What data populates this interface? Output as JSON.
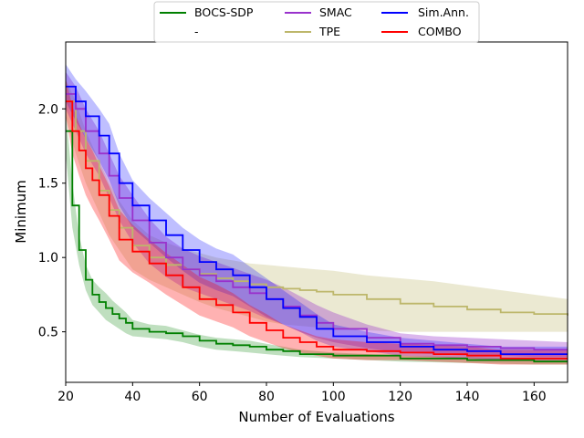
{
  "chart_data": {
    "type": "line",
    "title": "",
    "xlabel": "Number of Evaluations",
    "ylabel": "Minimum",
    "xlim": [
      20,
      170
    ],
    "ylim": [
      0.16,
      2.45
    ],
    "xticks": [
      20,
      40,
      60,
      80,
      100,
      120,
      140,
      160
    ],
    "yticks": [
      0.5,
      1.0,
      1.5,
      2.0
    ],
    "xtick_labels": [
      "20",
      "40",
      "60",
      "80",
      "100",
      "120",
      "140",
      "160"
    ],
    "ytick_labels": [
      "0.5",
      "1.0",
      "1.5",
      "2.0"
    ],
    "legend": {
      "placement": "top-center, above plot",
      "entries": [
        "BOCS-SDP",
        "-",
        "SMAC",
        "TPE",
        "Sim.Ann.",
        "COMBO"
      ]
    },
    "series": [
      {
        "name": "BOCS-SDP",
        "color": "#008000",
        "band_opacity": 0.25,
        "x": [
          20,
          22,
          24,
          26,
          28,
          30,
          32,
          34,
          36,
          38,
          40,
          45,
          50,
          55,
          60,
          65,
          70,
          75,
          80,
          85,
          90,
          100,
          120,
          140,
          160,
          170
        ],
        "y": [
          1.85,
          1.35,
          1.05,
          0.85,
          0.75,
          0.7,
          0.66,
          0.62,
          0.59,
          0.56,
          0.52,
          0.5,
          0.49,
          0.47,
          0.44,
          0.42,
          0.41,
          0.4,
          0.38,
          0.37,
          0.35,
          0.34,
          0.32,
          0.31,
          0.3,
          0.3
        ],
        "lower": [
          1.7,
          1.2,
          0.95,
          0.78,
          0.68,
          0.63,
          0.58,
          0.55,
          0.52,
          0.49,
          0.47,
          0.46,
          0.45,
          0.43,
          0.4,
          0.38,
          0.37,
          0.36,
          0.35,
          0.34,
          0.33,
          0.32,
          0.3,
          0.29,
          0.28,
          0.28
        ],
        "upper": [
          2.0,
          1.5,
          1.15,
          0.95,
          0.85,
          0.8,
          0.76,
          0.71,
          0.67,
          0.63,
          0.58,
          0.55,
          0.54,
          0.51,
          0.48,
          0.46,
          0.45,
          0.44,
          0.42,
          0.4,
          0.38,
          0.36,
          0.34,
          0.33,
          0.32,
          0.32
        ]
      },
      {
        "name": "-",
        "color": "",
        "band_opacity": 0,
        "x": [],
        "y": [],
        "lower": [],
        "upper": []
      },
      {
        "name": "TPE",
        "color": "#bdb76b",
        "band_opacity": 0.3,
        "x": [
          20,
          23,
          26,
          30,
          33,
          36,
          40,
          45,
          50,
          55,
          60,
          65,
          70,
          75,
          80,
          85,
          90,
          95,
          100,
          110,
          120,
          130,
          140,
          150,
          160,
          170
        ],
        "y": [
          2.05,
          1.85,
          1.65,
          1.45,
          1.32,
          1.2,
          1.08,
          1.0,
          0.95,
          0.92,
          0.89,
          0.86,
          0.84,
          0.82,
          0.8,
          0.79,
          0.78,
          0.77,
          0.75,
          0.72,
          0.69,
          0.67,
          0.65,
          0.63,
          0.62,
          0.61
        ],
        "lower": [
          1.95,
          1.7,
          1.5,
          1.3,
          1.15,
          1.05,
          0.92,
          0.85,
          0.8,
          0.75,
          0.7,
          0.66,
          0.63,
          0.6,
          0.57,
          0.55,
          0.54,
          0.53,
          0.52,
          0.51,
          0.5,
          0.5,
          0.5,
          0.5,
          0.5,
          0.5
        ],
        "upper": [
          2.2,
          2.05,
          1.85,
          1.65,
          1.5,
          1.38,
          1.25,
          1.15,
          1.1,
          1.06,
          1.03,
          1.0,
          0.98,
          0.96,
          0.95,
          0.94,
          0.93,
          0.92,
          0.91,
          0.88,
          0.86,
          0.84,
          0.81,
          0.78,
          0.75,
          0.72
        ]
      },
      {
        "name": "SMAC",
        "color": "#9932cc",
        "band_opacity": 0.35,
        "x": [
          20,
          23,
          26,
          30,
          33,
          36,
          40,
          45,
          50,
          55,
          60,
          65,
          70,
          75,
          80,
          85,
          90,
          95,
          100,
          110,
          120,
          130,
          140,
          150,
          160,
          170
        ],
        "y": [
          2.1,
          2.0,
          1.85,
          1.7,
          1.55,
          1.4,
          1.25,
          1.1,
          1.0,
          0.92,
          0.88,
          0.84,
          0.8,
          0.76,
          0.72,
          0.67,
          0.61,
          0.56,
          0.52,
          0.46,
          0.42,
          0.41,
          0.4,
          0.39,
          0.38,
          0.38
        ],
        "lower": [
          2.0,
          1.85,
          1.7,
          1.55,
          1.4,
          1.25,
          1.1,
          0.96,
          0.87,
          0.8,
          0.76,
          0.72,
          0.68,
          0.64,
          0.59,
          0.55,
          0.5,
          0.46,
          0.43,
          0.39,
          0.36,
          0.35,
          0.34,
          0.34,
          0.33,
          0.33
        ],
        "upper": [
          2.25,
          2.15,
          2.0,
          1.85,
          1.7,
          1.55,
          1.42,
          1.26,
          1.14,
          1.06,
          1.01,
          0.97,
          0.93,
          0.89,
          0.85,
          0.8,
          0.74,
          0.68,
          0.63,
          0.55,
          0.49,
          0.47,
          0.46,
          0.45,
          0.44,
          0.43
        ]
      },
      {
        "name": "Sim.Ann.",
        "color": "#0000ff",
        "band_opacity": 0.25,
        "x": [
          20,
          23,
          26,
          30,
          33,
          36,
          40,
          45,
          50,
          55,
          60,
          65,
          70,
          75,
          80,
          85,
          90,
          95,
          100,
          110,
          120,
          130,
          140,
          150,
          160,
          170
        ],
        "y": [
          2.15,
          2.05,
          1.95,
          1.82,
          1.7,
          1.5,
          1.35,
          1.25,
          1.15,
          1.05,
          0.97,
          0.92,
          0.88,
          0.8,
          0.72,
          0.66,
          0.6,
          0.52,
          0.47,
          0.43,
          0.4,
          0.38,
          0.37,
          0.35,
          0.35,
          0.35
        ],
        "lower": [
          2.05,
          1.92,
          1.8,
          1.65,
          1.52,
          1.35,
          1.2,
          1.1,
          1.0,
          0.91,
          0.83,
          0.78,
          0.74,
          0.67,
          0.6,
          0.55,
          0.5,
          0.44,
          0.4,
          0.37,
          0.34,
          0.33,
          0.32,
          0.31,
          0.31,
          0.31
        ],
        "upper": [
          2.3,
          2.2,
          2.12,
          2.0,
          1.9,
          1.7,
          1.52,
          1.4,
          1.3,
          1.2,
          1.12,
          1.06,
          1.02,
          0.94,
          0.86,
          0.78,
          0.7,
          0.62,
          0.55,
          0.5,
          0.46,
          0.44,
          0.42,
          0.4,
          0.4,
          0.4
        ]
      },
      {
        "name": "COMBO",
        "color": "#ff0000",
        "band_opacity": 0.3,
        "x": [
          20,
          22,
          24,
          26,
          28,
          30,
          33,
          36,
          40,
          45,
          50,
          55,
          60,
          65,
          70,
          75,
          80,
          85,
          90,
          95,
          100,
          110,
          120,
          130,
          140,
          150,
          160,
          170
        ],
        "y": [
          2.05,
          1.85,
          1.72,
          1.6,
          1.52,
          1.42,
          1.28,
          1.12,
          1.04,
          0.96,
          0.88,
          0.8,
          0.72,
          0.68,
          0.63,
          0.56,
          0.51,
          0.46,
          0.43,
          0.4,
          0.38,
          0.37,
          0.36,
          0.35,
          0.34,
          0.32,
          0.32,
          0.32
        ],
        "lower": [
          1.95,
          1.7,
          1.55,
          1.42,
          1.33,
          1.25,
          1.12,
          0.98,
          0.9,
          0.83,
          0.75,
          0.68,
          0.61,
          0.57,
          0.53,
          0.47,
          0.43,
          0.39,
          0.36,
          0.34,
          0.32,
          0.31,
          0.31,
          0.3,
          0.29,
          0.28,
          0.28,
          0.28
        ],
        "upper": [
          2.2,
          2.02,
          1.9,
          1.8,
          1.72,
          1.62,
          1.48,
          1.32,
          1.22,
          1.12,
          1.03,
          0.95,
          0.87,
          0.82,
          0.76,
          0.68,
          0.62,
          0.55,
          0.51,
          0.47,
          0.45,
          0.43,
          0.42,
          0.41,
          0.4,
          0.38,
          0.38,
          0.38
        ]
      }
    ]
  }
}
